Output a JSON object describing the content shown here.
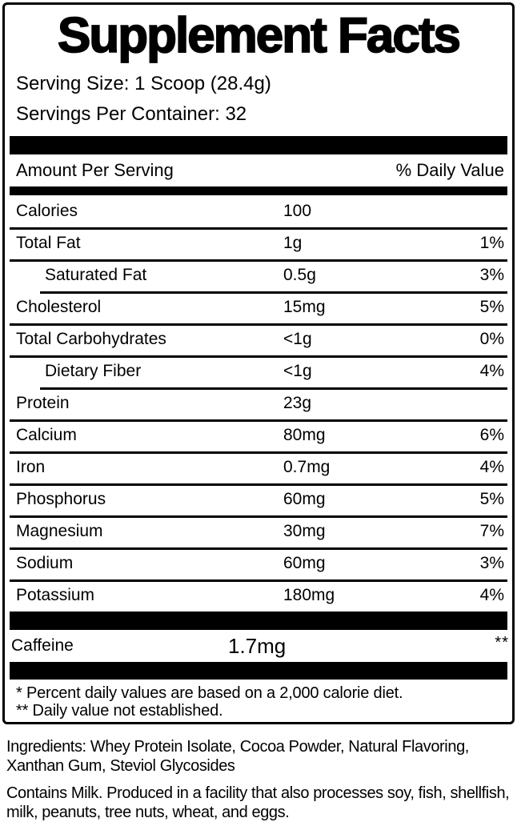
{
  "colors": {
    "ink": "#000000",
    "paper": "#ffffff"
  },
  "label": {
    "title": "Supplement Facts",
    "serving_size": "Serving Size: 1 Scoop (28.4g)",
    "servings_per_container": "Servings Per Container: 32",
    "columns": {
      "amount_header": "Amount Per Serving",
      "dv_header": "% Daily Value"
    },
    "rows": [
      {
        "name": "Calories",
        "amount": "100",
        "dv": "",
        "indent": false,
        "line": "none"
      },
      {
        "name": "Total Fat",
        "amount": "1g",
        "dv": "1%",
        "indent": false,
        "line": "full"
      },
      {
        "name": "Saturated Fat",
        "amount": "0.5g",
        "dv": "3%",
        "indent": true,
        "line": "full"
      },
      {
        "name": "Cholesterol",
        "amount": "15mg",
        "dv": "5%",
        "indent": false,
        "line": "indent"
      },
      {
        "name": "Total Carbohydrates",
        "amount": "<1g",
        "dv": "0%",
        "indent": false,
        "line": "full"
      },
      {
        "name": "Dietary Fiber",
        "amount": "<1g",
        "dv": "4%",
        "indent": true,
        "line": "full"
      },
      {
        "name": "Protein",
        "amount": "23g",
        "dv": "",
        "indent": false,
        "line": "indent"
      },
      {
        "name": "Calcium",
        "amount": "80mg",
        "dv": "6%",
        "indent": false,
        "line": "full"
      },
      {
        "name": "Iron",
        "amount": "0.7mg",
        "dv": "4%",
        "indent": false,
        "line": "full"
      },
      {
        "name": "Phosphorus",
        "amount": "60mg",
        "dv": "5%",
        "indent": false,
        "line": "full"
      },
      {
        "name": "Magnesium",
        "amount": "30mg",
        "dv": "7%",
        "indent": false,
        "line": "full"
      },
      {
        "name": "Sodium",
        "amount": "60mg",
        "dv": "3%",
        "indent": false,
        "line": "full"
      },
      {
        "name": "Potassium",
        "amount": "180mg",
        "dv": "4%",
        "indent": false,
        "line": "full"
      }
    ],
    "caffeine": {
      "name": "Caffeine",
      "amount": "1.7mg",
      "dv": "**"
    },
    "footnotes": [
      "* Percent daily values are based on a 2,000 calorie diet.",
      "** Daily value not established."
    ]
  },
  "ingredients": {
    "lines": [
      "Ingredients: Whey Protein Isolate, Cocoa Powder, Natural Flavoring,",
      "Xanthan Gum, Steviol Glycosides"
    ]
  },
  "allergen": {
    "lines": [
      "Contains Milk. Produced in a facility that also processes soy, fish, shellfish,",
      "milk, peanuts, tree nuts, wheat, and eggs."
    ]
  }
}
